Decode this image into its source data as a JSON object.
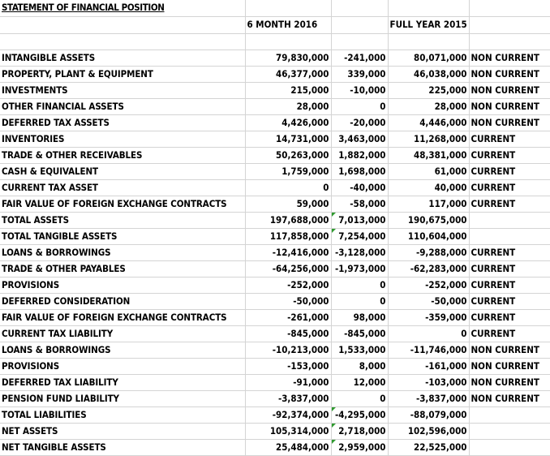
{
  "sheet": {
    "title": "STATEMENT OF FINANCIAL POSITION",
    "col_headers": {
      "period_2016": "6 MONTH 2016",
      "period_2015": "FULL YEAR 2015"
    },
    "rows": [
      {
        "label": "INTANGIBLE ASSETS",
        "v2016": "79,830,000",
        "change": "-241,000",
        "change_sign": "neg",
        "v2015": "80,071,000",
        "class": "NON CURRENT",
        "flag": false
      },
      {
        "label": "PROPERTY, PLANT & EQUIPMENT",
        "v2016": "46,377,000",
        "change": "339,000",
        "change_sign": "pos",
        "v2015": "46,038,000",
        "class": "NON CURRENT",
        "flag": false
      },
      {
        "label": "INVESTMENTS",
        "v2016": "215,000",
        "change": "-10,000",
        "change_sign": "neg",
        "v2015": "225,000",
        "class": "NON CURRENT",
        "flag": false
      },
      {
        "label": "OTHER FINANCIAL ASSETS",
        "v2016": "28,000",
        "change": "0",
        "change_sign": "zero",
        "v2015": "28,000",
        "class": "NON CURRENT",
        "flag": false
      },
      {
        "label": "DEFERRED TAX ASSETS",
        "v2016": "4,426,000",
        "change": "-20,000",
        "change_sign": "neg",
        "v2015": "4,446,000",
        "class": "NON CURRENT",
        "flag": false
      },
      {
        "label": "INVENTORIES",
        "v2016": "14,731,000",
        "change": "3,463,000",
        "change_sign": "pos",
        "v2015": "11,268,000",
        "class": "CURRENT",
        "flag": false
      },
      {
        "label": "TRADE & OTHER RECEIVABLES",
        "v2016": "50,263,000",
        "change": "1,882,000",
        "change_sign": "pos",
        "v2015": "48,381,000",
        "class": "CURRENT",
        "flag": false
      },
      {
        "label": "CASH & EQUIVALENT",
        "v2016": "1,759,000",
        "change": "1,698,000",
        "change_sign": "pos",
        "v2015": "61,000",
        "class": "CURRENT",
        "flag": false
      },
      {
        "label": "CURRENT TAX ASSET",
        "v2016": "0",
        "change": "-40,000",
        "change_sign": "neg",
        "v2015": "40,000",
        "class": "CURRENT",
        "flag": false
      },
      {
        "label": "FAIR VALUE OF FOREIGN EXCHANGE CONTRACTS",
        "v2016": "59,000",
        "change": "-58,000",
        "change_sign": "neg",
        "v2015": "117,000",
        "class": "CURRENT",
        "flag": false
      },
      {
        "label": "TOTAL ASSETS",
        "v2016": "197,688,000",
        "change": "7,013,000",
        "change_sign": "pos",
        "v2015": "190,675,000",
        "class": "",
        "flag": true
      },
      {
        "label": "TOTAL TANGIBLE ASSETS",
        "v2016": "117,858,000",
        "change": "7,254,000",
        "change_sign": "pos",
        "v2015": "110,604,000",
        "class": "",
        "flag": true
      },
      {
        "label": "LOANS & BORROWINGS",
        "v2016": "-12,416,000",
        "change": "-3,128,000",
        "change_sign": "neg",
        "v2015": "-9,288,000",
        "class": "CURRENT",
        "flag": false
      },
      {
        "label": "TRADE & OTHER PAYABLES",
        "v2016": "-64,256,000",
        "change": "-1,973,000",
        "change_sign": "neg",
        "v2015": "-62,283,000",
        "class": "CURRENT",
        "flag": false
      },
      {
        "label": "PROVISIONS",
        "v2016": "-252,000",
        "change": "0",
        "change_sign": "zero",
        "v2015": "-252,000",
        "class": "CURRENT",
        "flag": false
      },
      {
        "label": "DEFERRED CONSIDERATION",
        "v2016": "-50,000",
        "change": "0",
        "change_sign": "zero",
        "v2015": "-50,000",
        "class": "CURRENT",
        "flag": false
      },
      {
        "label": "FAIR VALUE OF FOREIGN EXCHANGE CONTRACTS",
        "v2016": "-261,000",
        "change": "98,000",
        "change_sign": "pos",
        "v2015": "-359,000",
        "class": "CURRENT",
        "flag": false
      },
      {
        "label": "CURRENT TAX LIABILITY",
        "v2016": "-845,000",
        "change": "-845,000",
        "change_sign": "neg",
        "v2015": "0",
        "class": "CURRENT",
        "flag": false
      },
      {
        "label": "LOANS & BORROWINGS",
        "v2016": "-10,213,000",
        "change": "1,533,000",
        "change_sign": "pos",
        "v2015": "-11,746,000",
        "class": "NON CURRENT",
        "flag": false
      },
      {
        "label": "PROVISIONS",
        "v2016": "-153,000",
        "change": "8,000",
        "change_sign": "pos",
        "v2015": "-161,000",
        "class": "NON CURRENT",
        "flag": false
      },
      {
        "label": "DEFERRED TAX LIABILITY",
        "v2016": "-91,000",
        "change": "12,000",
        "change_sign": "pos",
        "v2015": "-103,000",
        "class": "NON CURRENT",
        "flag": false
      },
      {
        "label": "PENSION FUND LIABILITY",
        "v2016": "-3,837,000",
        "change": "0",
        "change_sign": "zero",
        "v2015": "-3,837,000",
        "class": "NON CURRENT",
        "flag": false
      },
      {
        "label": "TOTAL LIABILITIES",
        "v2016": "-92,374,000",
        "change": "-4,295,000",
        "change_sign": "neg",
        "v2015": "-88,079,000",
        "class": "",
        "flag": true
      },
      {
        "label": "NET ASSETS",
        "v2016": "105,314,000",
        "change": "2,718,000",
        "change_sign": "pos",
        "v2015": "102,596,000",
        "class": "",
        "flag": true
      },
      {
        "label": "NET TANGIBLE ASSETS",
        "v2016": "25,484,000",
        "change": "2,959,000",
        "change_sign": "pos",
        "v2015": "22,525,000",
        "class": "",
        "flag": true
      }
    ]
  },
  "colors": {
    "negative": "#9a0000",
    "positive": "#1f1f8f",
    "indicator": "#2f9a2f",
    "gridline": "#d4d4d4"
  }
}
